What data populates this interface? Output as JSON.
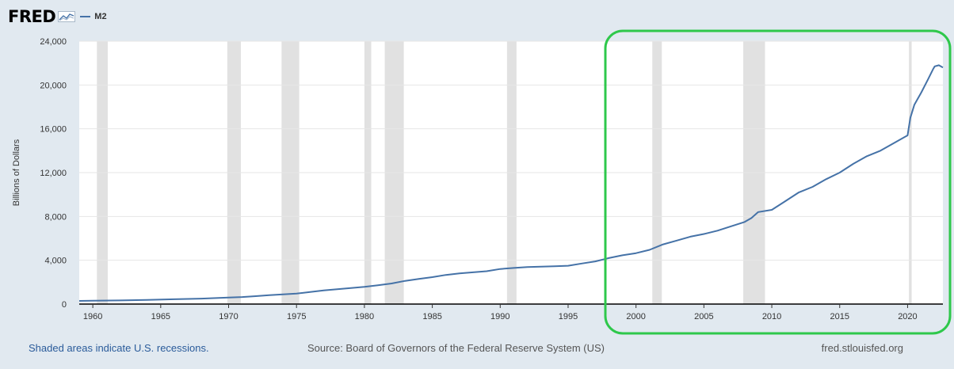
{
  "header": {
    "logo_text": "FRED",
    "logo_icon": "line-graph-icon",
    "series_label": "M2"
  },
  "footer": {
    "recession_note": "Shaded areas indicate U.S. recessions.",
    "source": "Source: Board of Governors of the Federal Reserve System (US)",
    "site": "fred.stlouisfed.org"
  },
  "colors": {
    "background": "#e1e9f0",
    "plot_background": "#ffffff",
    "series_line": "#4572a7",
    "recession_band": "#e1e1e1",
    "highlight_box": "#2ec84b"
  },
  "chart_data": {
    "type": "line",
    "ylabel": "Billions of Dollars",
    "xlabel": "",
    "xlim": [
      1959,
      2022.6
    ],
    "ylim": [
      0,
      24000
    ],
    "yticks": [
      0,
      4000,
      8000,
      12000,
      16000,
      20000,
      24000
    ],
    "ytick_labels": [
      "0",
      "4,000",
      "8,000",
      "12,000",
      "16,000",
      "20,000",
      "24,000"
    ],
    "xticks": [
      1960,
      1965,
      1970,
      1975,
      1980,
      1985,
      1990,
      1995,
      2000,
      2005,
      2010,
      2015,
      2020
    ],
    "grid": "horizontal",
    "series": [
      {
        "name": "M2",
        "x": [
          1959.0,
          1960.0,
          1962.0,
          1964.0,
          1966.0,
          1968.0,
          1970.0,
          1971.0,
          1972.0,
          1973.0,
          1974.0,
          1975.0,
          1976.0,
          1977.0,
          1978.0,
          1979.0,
          1980.0,
          1981.0,
          1982.0,
          1983.0,
          1984.0,
          1985.0,
          1986.0,
          1987.0,
          1988.0,
          1989.0,
          1990.0,
          1991.0,
          1992.0,
          1993.0,
          1994.0,
          1995.0,
          1996.0,
          1997.0,
          1998.0,
          1999.0,
          2000.0,
          2001.0,
          2002.0,
          2003.0,
          2004.0,
          2005.0,
          2006.0,
          2007.0,
          2008.0,
          2008.5,
          2009.0,
          2010.0,
          2011.0,
          2012.0,
          2013.0,
          2014.0,
          2015.0,
          2016.0,
          2017.0,
          2018.0,
          2019.0,
          2020.0,
          2020.2,
          2020.5,
          2021.0,
          2021.5,
          2021.9,
          2022.0,
          2022.3,
          2022.6
        ],
        "values": [
          290,
          305,
          335,
          380,
          440,
          500,
          590,
          640,
          720,
          820,
          880,
          960,
          1100,
          1240,
          1350,
          1460,
          1570,
          1720,
          1880,
          2120,
          2290,
          2460,
          2660,
          2800,
          2900,
          3000,
          3200,
          3300,
          3380,
          3420,
          3450,
          3500,
          3700,
          3900,
          4200,
          4450,
          4650,
          4950,
          5450,
          5800,
          6150,
          6400,
          6700,
          7100,
          7500,
          7850,
          8400,
          8600,
          9400,
          10200,
          10700,
          11400,
          12000,
          12800,
          13500,
          14000,
          14700,
          15400,
          17000,
          18200,
          19300,
          20500,
          21500,
          21700,
          21800,
          21600
        ]
      }
    ],
    "recessions": [
      [
        1960.3,
        1961.1
      ],
      [
        1969.9,
        1970.9
      ],
      [
        1973.9,
        1975.2
      ],
      [
        1980.0,
        1980.5
      ],
      [
        1981.5,
        1982.9
      ],
      [
        1990.5,
        1991.2
      ],
      [
        2001.2,
        2001.9
      ],
      [
        2007.9,
        2009.5
      ],
      [
        2020.1,
        2020.3
      ]
    ],
    "highlight": {
      "x_range": [
        1997.8,
        2022.6
      ],
      "y_range": [
        -600,
        24500
      ]
    }
  }
}
